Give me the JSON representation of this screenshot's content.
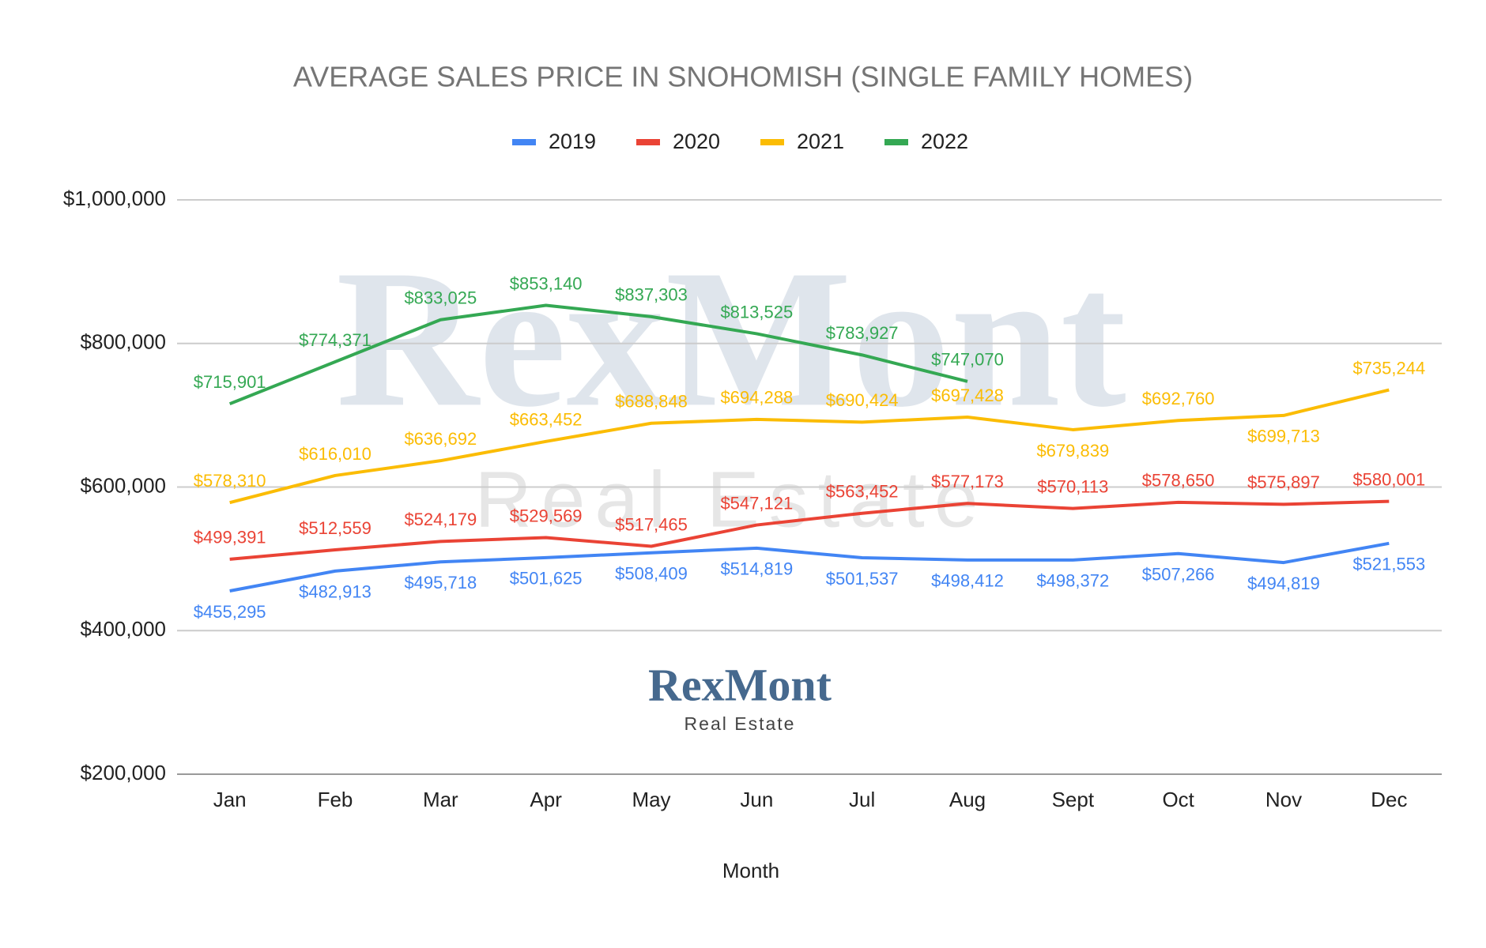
{
  "chart_data": {
    "type": "line",
    "title": "AVERAGE SALES PRICE IN SNOHOMISH (SINGLE FAMILY HOMES)",
    "x_label": "Month",
    "watermark": {
      "text": "RexMont",
      "subtext": "Real Estate"
    },
    "logo": {
      "text": "RexMont",
      "subtext": "Real Estate"
    },
    "legend": "top",
    "grid": true,
    "categories": [
      "Jan",
      "Feb",
      "Mar",
      "Apr",
      "May",
      "Jun",
      "Jul",
      "Aug",
      "Sept",
      "Oct",
      "Nov",
      "Dec"
    ],
    "ylim": [
      200000,
      1000000
    ],
    "yticks": [
      {
        "value": 200000,
        "label": "$200,000"
      },
      {
        "value": 400000,
        "label": "$400,000"
      },
      {
        "value": 600000,
        "label": "$600,000"
      },
      {
        "value": 800000,
        "label": "$800,000"
      },
      {
        "value": 1000000,
        "label": "$1,000,000"
      }
    ],
    "series": [
      {
        "name": "2019",
        "color": "#4285f4",
        "values": [
          455295,
          482913,
          495718,
          501625,
          508409,
          514819,
          501537,
          498412,
          498372,
          507266,
          494819,
          521553
        ],
        "value_labels": [
          "$455,295",
          "$482,913",
          "$495,718",
          "$501,625",
          "$508,409",
          "$514,819",
          "$501,537",
          "$498,412",
          "$498,372",
          "$507,266",
          "$494,819",
          "$521,553"
        ]
      },
      {
        "name": "2020",
        "color": "#ea4335",
        "values": [
          499391,
          512559,
          524179,
          529569,
          517465,
          547121,
          563452,
          577173,
          570113,
          578650,
          575897,
          580001
        ],
        "value_labels": [
          "$499,391",
          "$512,559",
          "$524,179",
          "$529,569",
          "$517,465",
          "$547,121",
          "$563,452",
          "$577,173",
          "$570,113",
          "$578,650",
          "$575,897",
          "$580,001"
        ]
      },
      {
        "name": "2021",
        "color": "#fbbc04",
        "values": [
          578310,
          616010,
          636692,
          663452,
          688848,
          694288,
          690424,
          697428,
          679839,
          692760,
          699713,
          735244
        ],
        "value_labels": [
          "$578,310",
          "$616,010",
          "$636,692",
          "$663,452",
          "$688,848",
          "$694,288",
          "$690,424",
          "$697,428",
          "$679,839",
          "$692,760",
          "$699,713",
          "$735,244"
        ]
      },
      {
        "name": "2022",
        "color": "#34a853",
        "values": [
          715901,
          774371,
          833025,
          853140,
          837303,
          813525,
          783927,
          747070,
          null,
          null,
          null,
          null
        ],
        "value_labels": [
          "$715,901",
          "$774,371",
          "$833,025",
          "$853,140",
          "$837,303",
          "$813,525",
          "$783,927",
          "$747,070",
          null,
          null,
          null,
          null
        ]
      }
    ]
  }
}
